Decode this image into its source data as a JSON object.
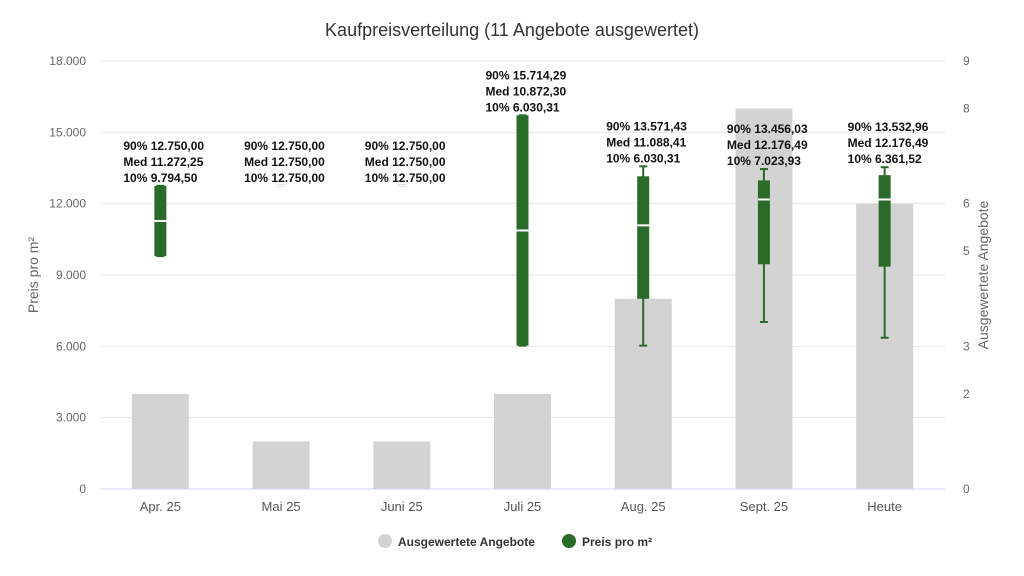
{
  "chart_data": {
    "type": "bar",
    "title": "Kaufpreisverteilung (11 Angebote ausgewertet)",
    "categories": [
      "Apr. 25",
      "Mai 25",
      "Juni 25",
      "Juli 25",
      "Aug. 25",
      "Sept. 25",
      "Heute"
    ],
    "y_left": {
      "label": "Preis pro m²",
      "min": 0,
      "max": 18000,
      "ticks": [
        0,
        3000,
        6000,
        9000,
        12000,
        15000,
        18000
      ],
      "tick_labels": [
        "0",
        "3.000",
        "6.000",
        "9.000",
        "12.000",
        "15.000",
        "18.000"
      ]
    },
    "y_right": {
      "label": "Ausgewertete Angebote",
      "min": 0,
      "max": 9,
      "ticks": [
        0,
        2,
        3,
        5,
        6,
        8,
        9
      ],
      "tick_labels": [
        "0",
        "2",
        "3",
        "5",
        "6",
        "8",
        "9"
      ]
    },
    "series": [
      {
        "name": "Ausgewertete Angebote",
        "type": "bar",
        "axis": "right",
        "color": "#d3d3d3",
        "values": [
          2,
          1,
          1,
          2,
          4,
          8,
          6
        ]
      },
      {
        "name": "Preis pro m²",
        "type": "boxplot",
        "axis": "left",
        "color": "#2a6b2a",
        "values": [
          {
            "p10": 9794.5,
            "q1": 9794.5,
            "median": 11272.25,
            "q3": 12750.0,
            "p90": 12750.0
          },
          {
            "p10": 12750.0,
            "q1": 12750.0,
            "median": 12750.0,
            "q3": 12750.0,
            "p90": 12750.0
          },
          {
            "p10": 12750.0,
            "q1": 12750.0,
            "median": 12750.0,
            "q3": 12750.0,
            "p90": 12750.0
          },
          {
            "p10": 6030.31,
            "q1": 6030.31,
            "median": 10872.3,
            "q3": 15714.29,
            "p90": 15714.29
          },
          {
            "p10": 6030.31,
            "q1": 8000,
            "median": 11088.41,
            "q3": 13150,
            "p90": 13571.43
          },
          {
            "p10": 7023.93,
            "q1": 9450,
            "median": 12176.49,
            "q3": 12980,
            "p90": 13456.03
          },
          {
            "p10": 6361.52,
            "q1": 9350,
            "median": 12176.49,
            "q3": 13200,
            "p90": 13532.96
          }
        ]
      }
    ],
    "annotations": [
      [
        "90% 12.750,00",
        "Med 11.272,25",
        "10% 9.794,50"
      ],
      [
        "90% 12.750,00",
        "Med 12.750,00",
        "10% 12.750,00"
      ],
      [
        "90% 12.750,00",
        "Med 12.750,00",
        "10% 12.750,00"
      ],
      [
        "90% 15.714,29",
        "Med 10.872,30",
        "10% 6.030,31"
      ],
      [
        "90% 13.571,43",
        "Med 11.088,41",
        "10% 6.030,31"
      ],
      [
        "90% 13.456,03",
        "Med 12.176,49",
        "10% 7.023,93"
      ],
      [
        "90% 13.532,96",
        "Med 12.176,49",
        "10% 6.361,52"
      ]
    ],
    "legend": {
      "position": "bottom-center",
      "items": [
        {
          "label": "Ausgewertete Angebote",
          "color": "#d3d3d3"
        },
        {
          "label": "Preis pro m²",
          "color": "#2a6b2a"
        }
      ]
    },
    "grid": true
  }
}
